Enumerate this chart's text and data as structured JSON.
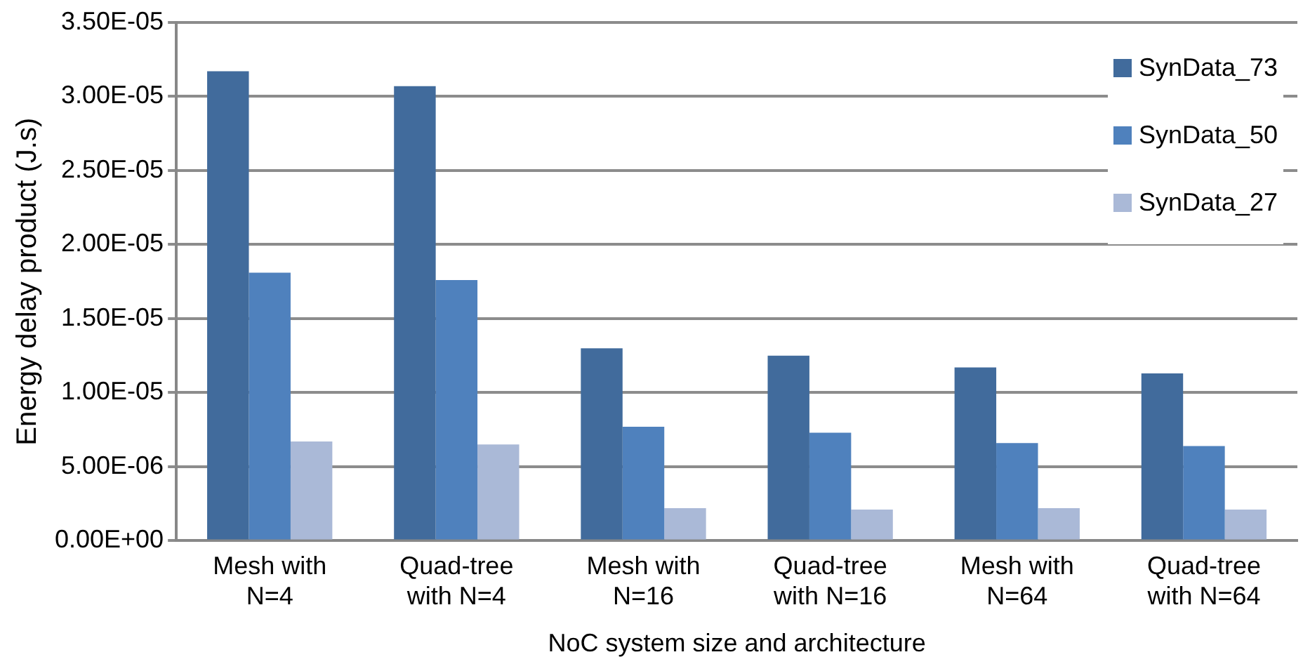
{
  "chart_data": {
    "type": "bar",
    "xlabel": "NoC system size and architecture",
    "ylabel": "Energy delay product (J.s)",
    "categories": [
      "Mesh with\nN=4",
      "Quad-tree\nwith N=4",
      "Mesh with\nN=16",
      "Quad-tree\nwith N=16",
      "Mesh with\nN=64",
      "Quad-tree\nwith N=64"
    ],
    "series": [
      {
        "name": "SynData_73",
        "color": "#416b9c",
        "values": [
          3.17e-05,
          3.07e-05,
          1.3e-05,
          1.25e-05,
          1.17e-05,
          1.13e-05
        ]
      },
      {
        "name": "SynData_50",
        "color": "#4f81bd",
        "values": [
          1.81e-05,
          1.76e-05,
          7.7e-06,
          7.3e-06,
          6.6e-06,
          6.4e-06
        ]
      },
      {
        "name": "SynData_27",
        "color": "#aab9d7",
        "values": [
          6.7e-06,
          6.5e-06,
          2.2e-06,
          2.1e-06,
          2.2e-06,
          2.1e-06
        ]
      }
    ],
    "ylim": [
      0,
      3.5e-05
    ],
    "yticks": [
      {
        "value": 0,
        "label": "0.00E+00"
      },
      {
        "value": 5e-06,
        "label": "5.00E-06"
      },
      {
        "value": 1e-05,
        "label": "1.00E-05"
      },
      {
        "value": 1.5e-05,
        "label": "1.50E-05"
      },
      {
        "value": 2e-05,
        "label": "2.00E-05"
      },
      {
        "value": 2.5e-05,
        "label": "2.50E-05"
      },
      {
        "value": 3e-05,
        "label": "3.00E-05"
      },
      {
        "value": 3.5e-05,
        "label": "3.50E-05"
      }
    ],
    "grid": "y",
    "legend": "top right"
  }
}
